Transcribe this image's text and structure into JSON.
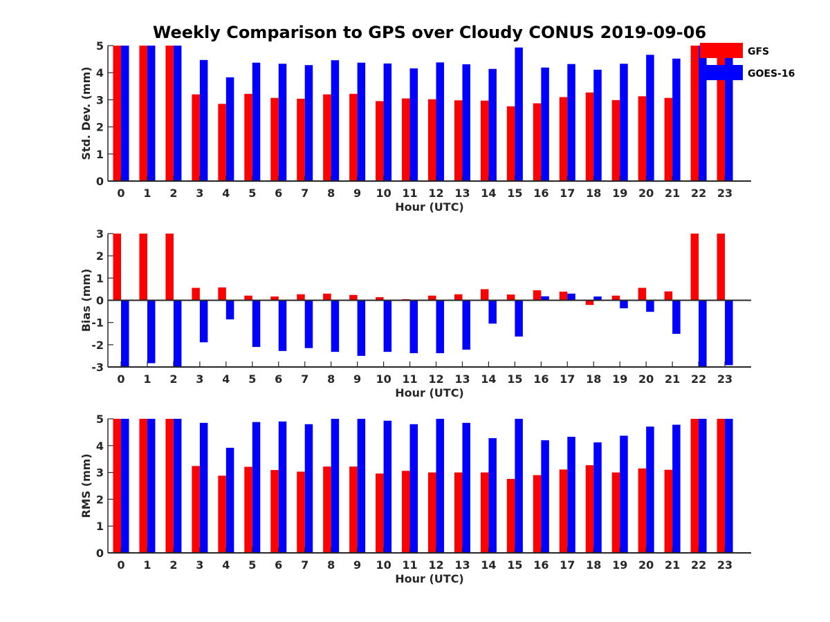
{
  "figure": {
    "title": "Weekly Comparison to GPS over Cloudy CONUS 2019-09-06"
  },
  "legend": {
    "placement": "top-right",
    "entries": [
      {
        "name": "GFS",
        "color": "#ff0000"
      },
      {
        "name": "GOES-16",
        "color": "#0000ff"
      }
    ]
  },
  "chart_data": [
    {
      "type": "bar",
      "id": "stddev",
      "title": "Weekly Comparison to GPS over Cloudy CONUS 2019-09-06",
      "xlabel": "Hour (UTC)",
      "ylabel": "Std. Dev. (mm)",
      "ylim": [
        0,
        5
      ],
      "yticks": [
        0,
        1,
        2,
        3,
        4,
        5
      ],
      "grid": false,
      "categories": [
        "0",
        "1",
        "2",
        "3",
        "4",
        "5",
        "6",
        "7",
        "8",
        "9",
        "10",
        "11",
        "12",
        "13",
        "14",
        "15",
        "16",
        "17",
        "18",
        "19",
        "20",
        "21",
        "22",
        "23"
      ],
      "series": [
        {
          "name": "GFS",
          "color": "#ff0000",
          "values": [
            5,
            5,
            5,
            3.2,
            2.85,
            3.22,
            3.07,
            3.04,
            3.2,
            3.22,
            2.95,
            3.05,
            3.02,
            2.98,
            2.97,
            2.76,
            2.87,
            3.1,
            3.27,
            2.99,
            3.13,
            3.07,
            5,
            5
          ]
        },
        {
          "name": "GOES-16",
          "color": "#0000ff",
          "values": [
            5,
            5,
            5,
            4.47,
            3.83,
            4.37,
            4.33,
            4.28,
            4.46,
            4.37,
            4.34,
            4.16,
            4.38,
            4.31,
            4.14,
            4.93,
            4.19,
            4.32,
            4.11,
            4.33,
            4.66,
            4.52,
            5,
            5
          ]
        }
      ]
    },
    {
      "type": "bar",
      "id": "bias",
      "xlabel": "Hour (UTC)",
      "ylabel": "Bias (mm)",
      "ylim": [
        -3,
        3
      ],
      "yticks": [
        -3,
        -2,
        -1,
        0,
        1,
        2,
        3
      ],
      "grid": false,
      "categories": [
        "0",
        "1",
        "2",
        "3",
        "4",
        "5",
        "6",
        "7",
        "8",
        "9",
        "10",
        "11",
        "12",
        "13",
        "14",
        "15",
        "16",
        "17",
        "18",
        "19",
        "20",
        "21",
        "22",
        "23"
      ],
      "series": [
        {
          "name": "GFS",
          "color": "#ff0000",
          "values": [
            3,
            3,
            3,
            0.56,
            0.58,
            0.21,
            0.17,
            0.27,
            0.3,
            0.24,
            0.14,
            0.05,
            0.21,
            0.27,
            0.5,
            0.26,
            0.45,
            0.39,
            -0.21,
            0.21,
            0.56,
            0.4,
            3,
            3
          ]
        },
        {
          "name": "GOES-16",
          "color": "#0000ff",
          "values": [
            -3,
            -2.83,
            -3,
            -1.89,
            -0.86,
            -2.1,
            -2.28,
            -2.15,
            -2.32,
            -2.5,
            -2.32,
            -2.38,
            -2.38,
            -2.22,
            -1.05,
            -1.63,
            0.18,
            0.3,
            0.17,
            -0.36,
            -0.52,
            -1.51,
            -3,
            -2.92
          ]
        }
      ]
    },
    {
      "type": "bar",
      "id": "rms",
      "xlabel": "Hour (UTC)",
      "ylabel": "RMS (mm)",
      "ylim": [
        0,
        5
      ],
      "yticks": [
        0,
        1,
        2,
        3,
        4,
        5
      ],
      "grid": false,
      "categories": [
        "0",
        "1",
        "2",
        "3",
        "4",
        "5",
        "6",
        "7",
        "8",
        "9",
        "10",
        "11",
        "12",
        "13",
        "14",
        "15",
        "16",
        "17",
        "18",
        "19",
        "20",
        "21",
        "22",
        "23"
      ],
      "series": [
        {
          "name": "GFS",
          "color": "#ff0000",
          "values": [
            5,
            5,
            5,
            3.24,
            2.88,
            3.21,
            3.09,
            3.03,
            3.22,
            3.22,
            2.96,
            3.06,
            3.0,
            3.0,
            3.0,
            2.76,
            2.9,
            3.11,
            3.27,
            3.0,
            3.15,
            3.1,
            5,
            5
          ]
        },
        {
          "name": "GOES-16",
          "color": "#0000ff",
          "values": [
            5,
            5,
            5,
            4.85,
            3.92,
            4.88,
            4.9,
            4.8,
            5,
            5,
            4.93,
            4.8,
            5,
            4.85,
            4.28,
            5,
            4.2,
            4.33,
            4.12,
            4.37,
            4.71,
            4.78,
            5,
            5
          ]
        }
      ]
    }
  ]
}
